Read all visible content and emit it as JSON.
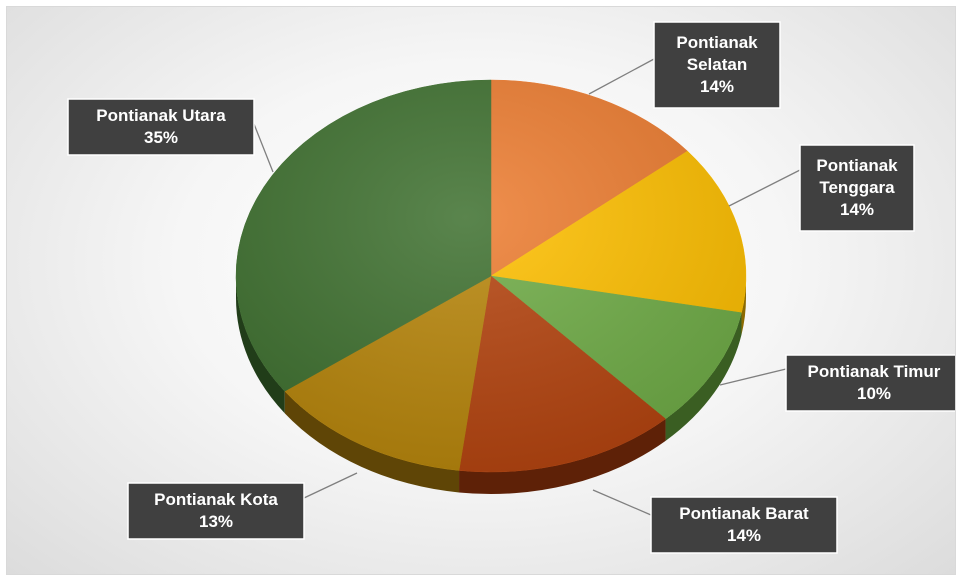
{
  "chart_data": {
    "type": "pie",
    "title": "",
    "slices": [
      {
        "label_lines": [
          "Pontianak",
          "Selatan"
        ],
        "label": "Pontianak Selatan",
        "value": 14,
        "display": "14%",
        "color": "#ED7D31",
        "dark": "#8A4416"
      },
      {
        "label_lines": [
          "Pontianak",
          "Tenggara"
        ],
        "label": "Pontianak Tenggara",
        "value": 14,
        "display": "14%",
        "color": "#FFC000",
        "dark": "#8C6A00"
      },
      {
        "label_lines": [
          "Pontianak Timur"
        ],
        "label": "Pontianak Timur",
        "value": 10,
        "display": "10%",
        "color": "#70AD47",
        "dark": "#3A5E22"
      },
      {
        "label_lines": [
          "Pontianak Barat"
        ],
        "label": "Pontianak Barat",
        "value": 14,
        "display": "14%",
        "color": "#B5440F",
        "dark": "#5E2107"
      },
      {
        "label_lines": [
          "Pontianak Kota"
        ],
        "label": "Pontianak Kota",
        "value": 13,
        "display": "13%",
        "color": "#B8860B",
        "dark": "#5F4506"
      },
      {
        "label_lines": [
          "Pontianak Utara"
        ],
        "label": "Pontianak Utara",
        "value": 35,
        "display": "35%",
        "color": "#3F7130",
        "dark": "#213D19"
      }
    ],
    "start_angle_deg": 0,
    "direction": "clockwise",
    "legend": "none",
    "data_labels": "category-and-percentage"
  }
}
